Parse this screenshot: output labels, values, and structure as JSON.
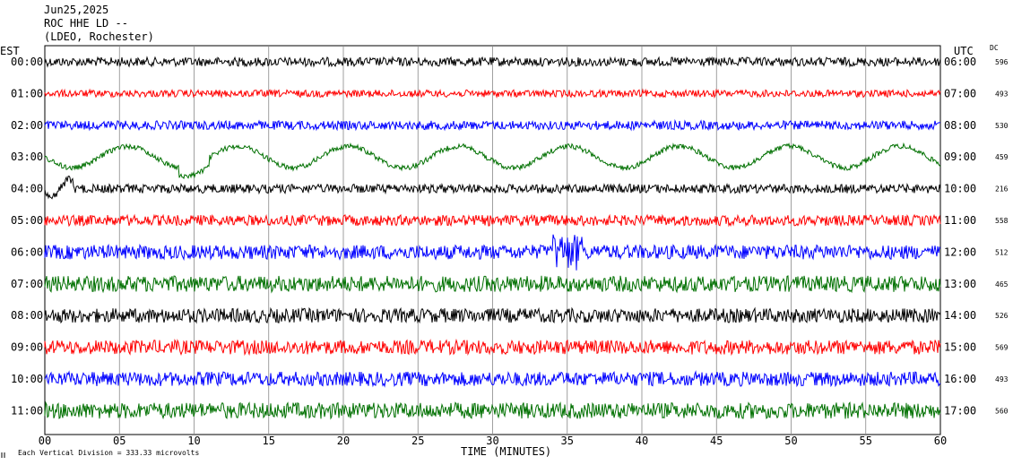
{
  "header": {
    "date": "Jun25,2025",
    "station": "ROC HHE LD --",
    "network": "(LDEO, Rochester)"
  },
  "left_tz": "EST",
  "right_tz": "UTC",
  "dc_label": "DC",
  "footer": {
    "scale_icon": "scale-icon",
    "scale_note": "Each Vertical Division =  333.33 microvolts"
  },
  "chart_data": {
    "type": "line",
    "title": "",
    "xlabel": "TIME (MINUTES)",
    "x_ticks": [
      "00",
      "05",
      "10",
      "15",
      "20",
      "25",
      "30",
      "35",
      "40",
      "45",
      "50",
      "55",
      "60"
    ],
    "xlim": [
      0,
      60
    ],
    "grid": true,
    "series": [
      {
        "est": "00:00",
        "utc": "06:00",
        "dc": "596",
        "color": "#000000"
      },
      {
        "est": "01:00",
        "utc": "07:00",
        "dc": "493",
        "color": "#ff0000"
      },
      {
        "est": "02:00",
        "utc": "08:00",
        "dc": "530",
        "color": "#0000ff"
      },
      {
        "est": "03:00",
        "utc": "09:00",
        "dc": "459",
        "color": "#007000"
      },
      {
        "est": "04:00",
        "utc": "10:00",
        "dc": "216",
        "color": "#000000"
      },
      {
        "est": "05:00",
        "utc": "11:00",
        "dc": "558",
        "color": "#ff0000"
      },
      {
        "est": "06:00",
        "utc": "12:00",
        "dc": "512",
        "color": "#0000ff"
      },
      {
        "est": "07:00",
        "utc": "13:00",
        "dc": "465",
        "color": "#007000"
      },
      {
        "est": "08:00",
        "utc": "14:00",
        "dc": "526",
        "color": "#000000"
      },
      {
        "est": "09:00",
        "utc": "15:00",
        "dc": "569",
        "color": "#ff0000"
      },
      {
        "est": "10:00",
        "utc": "16:00",
        "dc": "493",
        "color": "#0000ff"
      },
      {
        "est": "11:00",
        "utc": "17:00",
        "dc": "560",
        "color": "#007000"
      }
    ]
  }
}
